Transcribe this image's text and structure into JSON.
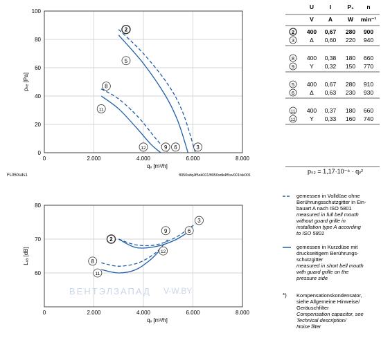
{
  "chart_data": [
    {
      "type": "line",
      "id": "pressure-chart",
      "xlabel": "qᵥ [m³/h]",
      "ylabel": "pₛₑ [Pa]",
      "xlim": [
        0,
        8000
      ],
      "ylim": [
        0,
        100
      ],
      "x_ticks": [
        "0",
        "2.000",
        "4.000",
        "6.000",
        "8.000"
      ],
      "y_ticks": [
        "0",
        "20",
        "40",
        "60",
        "80",
        "100"
      ],
      "x_tick_values": [
        0,
        2000,
        4000,
        6000,
        8000
      ],
      "y_tick_values": [
        0,
        20,
        40,
        60,
        80,
        100
      ],
      "grid": true,
      "footer_left": "FL050sds1",
      "footer_right": "fl050sdq4f5sk001/fl050sdk4f5sv001/sk001",
      "series": [
        {
          "name": "2",
          "dashed": true,
          "x": [
            3000,
            4000,
            5000,
            5600,
            6100
          ],
          "y": [
            87,
            70,
            48,
            28,
            0
          ]
        },
        {
          "name": "5",
          "dashed": false,
          "x": [
            3000,
            4000,
            4900,
            5400,
            5800
          ],
          "y": [
            83,
            63,
            40,
            22,
            0
          ]
        },
        {
          "name": "8",
          "dashed": true,
          "x": [
            2300,
            3000,
            3800,
            4500,
            5000
          ],
          "y": [
            45,
            38,
            25,
            10,
            0
          ]
        },
        {
          "name": "11",
          "dashed": false,
          "x": [
            2300,
            3000,
            3700,
            4300,
            4700
          ],
          "y": [
            40,
            31,
            18,
            6,
            0
          ]
        }
      ],
      "markers": [
        {
          "label": "2",
          "x": 3300,
          "y": 87,
          "bold": true
        },
        {
          "label": "5",
          "x": 3300,
          "y": 65
        },
        {
          "label": "8",
          "x": 2500,
          "y": 47
        },
        {
          "label": "11",
          "x": 2300,
          "y": 31
        },
        {
          "label": "12",
          "x": 4000,
          "y": 4
        },
        {
          "label": "9",
          "x": 4900,
          "y": 4
        },
        {
          "label": "6",
          "x": 5300,
          "y": 4
        },
        {
          "label": "3",
          "x": 6200,
          "y": 4
        }
      ]
    },
    {
      "type": "line",
      "id": "noise-chart",
      "xlabel": "qᵥ [m³/h]",
      "ylabel": "Lᵥₐ [dB]",
      "xlim": [
        0,
        8000
      ],
      "ylim": [
        50,
        80
      ],
      "x_ticks": [
        "0",
        "2.000",
        "4.000",
        "6.000",
        "8.000"
      ],
      "y_ticks": [
        "60",
        "70",
        "80"
      ],
      "x_tick_values": [
        0,
        2000,
        4000,
        6000,
        8000
      ],
      "y_tick_values": [
        60,
        70,
        80
      ],
      "grid": true,
      "series": [
        {
          "name": "2",
          "dashed": true,
          "x": [
            3000,
            3700,
            4500,
            5300,
            6100
          ],
          "y": [
            70,
            68.3,
            68.3,
            70.5,
            74.5
          ]
        },
        {
          "name": "5",
          "dashed": false,
          "x": [
            3000,
            3700,
            4500,
            5300,
            6000
          ],
          "y": [
            70,
            67.5,
            67.8,
            69.8,
            73
          ]
        },
        {
          "name": "8",
          "dashed": true,
          "x": [
            2300,
            3000,
            3800,
            4500,
            5000
          ],
          "y": [
            63,
            62,
            63,
            66,
            70
          ]
        },
        {
          "name": "11",
          "dashed": false,
          "x": [
            2300,
            3000,
            3700,
            4300,
            4700
          ],
          "y": [
            61,
            60,
            61,
            64,
            67
          ]
        }
      ],
      "markers": [
        {
          "label": "2",
          "x": 2700,
          "y": 70,
          "bold": true
        },
        {
          "label": "8",
          "x": 1950,
          "y": 63.5
        },
        {
          "label": "11",
          "x": 2150,
          "y": 60
        },
        {
          "label": "9",
          "x": 4900,
          "y": 72.5
        },
        {
          "label": "12",
          "x": 4800,
          "y": 66.5
        },
        {
          "label": "3",
          "x": 6250,
          "y": 75.5
        },
        {
          "label": "6",
          "x": 5850,
          "y": 72.5
        }
      ]
    }
  ],
  "table": {
    "headers": [
      "U",
      "I",
      "P₁",
      "n"
    ],
    "units": [
      "V",
      "A",
      "W",
      "min⁻¹"
    ],
    "groups": [
      [
        {
          "ref": "2",
          "u": "400",
          "i": "0,67",
          "p": "280",
          "n": "900",
          "bold": true
        },
        {
          "ref": "3",
          "u": "Δ",
          "i": "0,60",
          "p": "220",
          "n": "940"
        }
      ],
      [
        {
          "ref": "8",
          "u": "400",
          "i": "0,38",
          "p": "180",
          "n": "660"
        },
        {
          "ref": "9",
          "u": "Y",
          "i": "0,32",
          "p": "150",
          "n": "770"
        }
      ],
      [
        {
          "ref": "5",
          "u": "400",
          "i": "0,67",
          "p": "280",
          "n": "910"
        },
        {
          "ref": "6",
          "u": "Δ",
          "i": "0,63",
          "p": "230",
          "n": "930"
        }
      ],
      [
        {
          "ref": "11",
          "u": "400",
          "i": "0,37",
          "p": "180",
          "n": "660"
        },
        {
          "ref": "12",
          "u": "Y",
          "i": "0,33",
          "p": "160",
          "n": "740"
        }
      ]
    ],
    "formula": "pₛ₂ = 1,17·10⁻⁶ · qᵥ²"
  },
  "legend": {
    "dashed_de": [
      "gemessen in Volldüse ohne",
      "Berührungsschutzgitter in Ein-",
      "bauart A nach ISO 5801"
    ],
    "dashed_en": [
      "measured in full bell mouth",
      "without guard grille in",
      "installation type A according",
      "to ISO 5801"
    ],
    "solid_de": [
      "gemessen in Kurzdüse mit",
      "druckseitigem Berührungs-",
      "schutzgitter"
    ],
    "solid_en": [
      "measured in short bell mouth",
      "with guard grille on the",
      "pressure side"
    ],
    "note_mark": "*)",
    "note_de": [
      "Kompensationskondensator,",
      "siehe Allgemeine Hinweise/",
      "Geräuschfilter"
    ],
    "note_en": [
      "Compensation capacitor, see",
      "Technical description/",
      "Noise filter"
    ]
  },
  "watermark": {
    "text": "ВЕНТЭЛЗАПАД",
    "suffix": "V-W.BY"
  },
  "colors": {
    "curve": "#1f5fa8",
    "grid": "#c8c8c8",
    "axis": "#333333"
  }
}
